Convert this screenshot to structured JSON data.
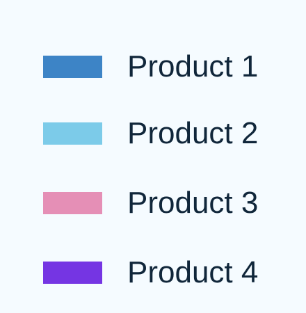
{
  "chart_data": {
    "type": "bar",
    "legend": [
      {
        "name": "Product 1",
        "color": "#3d84c6"
      },
      {
        "name": "Product 2",
        "color": "#7ccbe9"
      },
      {
        "name": "Product 3",
        "color": "#e58fb6"
      },
      {
        "name": "Product 4",
        "color": "#7535e3"
      }
    ],
    "series": [
      {
        "name": "Product 1"
      },
      {
        "name": "Product 2"
      },
      {
        "name": "Product 3"
      },
      {
        "name": "Product 4"
      }
    ]
  }
}
